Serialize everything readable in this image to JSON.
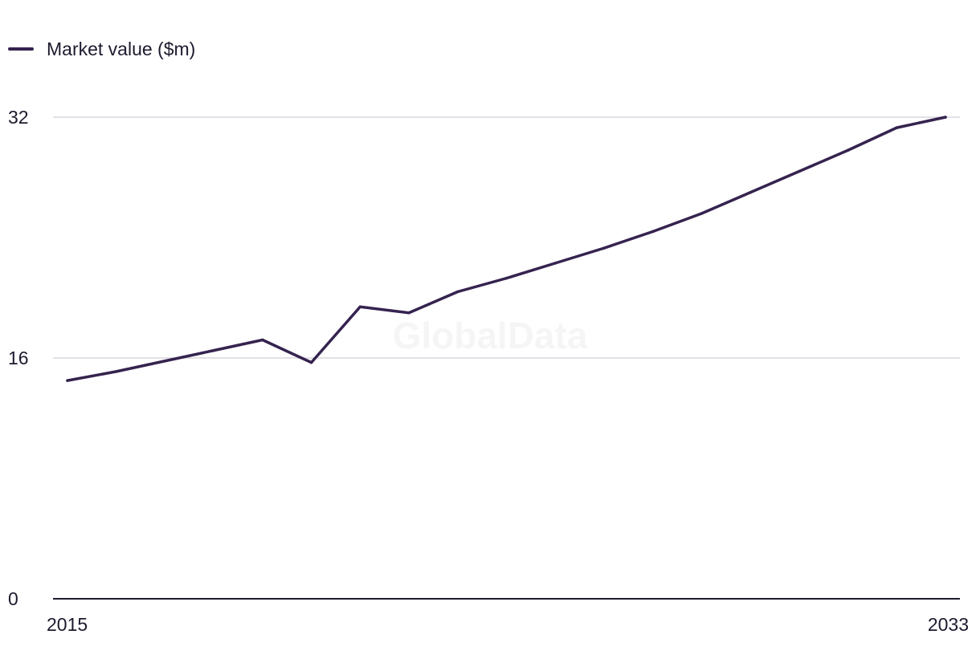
{
  "legend": {
    "label": "Market value ($m)"
  },
  "watermark": "GlobalData",
  "colors": {
    "series": "#35234f",
    "grid": "#d9d6dd",
    "axis": "#1e1a2e"
  },
  "chart_data": {
    "type": "line",
    "title": "",
    "xlabel": "",
    "ylabel": "",
    "x": [
      2015,
      2016,
      2017,
      2018,
      2019,
      2020,
      2021,
      2022,
      2023,
      2024,
      2025,
      2026,
      2027,
      2028,
      2029,
      2030,
      2031,
      2032,
      2033
    ],
    "series": [
      {
        "name": "Market value ($m)",
        "values": [
          14.5,
          15.1,
          15.8,
          16.5,
          17.2,
          15.7,
          19.4,
          19.0,
          20.4,
          21.3,
          22.3,
          23.3,
          24.4,
          25.6,
          27.0,
          28.4,
          29.8,
          31.3,
          32.0
        ]
      }
    ],
    "xlim": [
      2015,
      2033
    ],
    "ylim": [
      0,
      32
    ],
    "y_ticks": [
      "0",
      "16",
      "32"
    ],
    "x_tick_labels": [
      "2015",
      "2033"
    ],
    "grid": true,
    "legend_position": "top-left"
  }
}
